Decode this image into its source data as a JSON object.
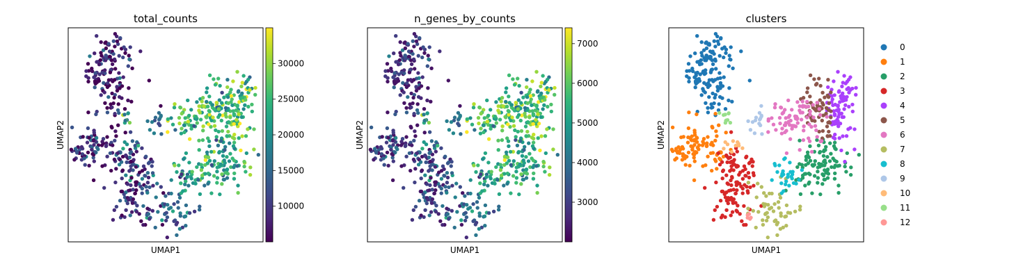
{
  "chart_data": [
    {
      "type": "scatter",
      "title": "total_counts",
      "xlabel": "UMAP1",
      "ylabel": "UMAP2",
      "colorbar": {
        "colormap": "viridis",
        "range": [
          5000,
          35000
        ],
        "ticks": [
          10000,
          15000,
          20000,
          25000,
          30000
        ],
        "tick_labels": [
          "10000",
          "15000",
          "20000",
          "25000",
          "30000"
        ]
      }
    },
    {
      "type": "scatter",
      "title": "n_genes_by_counts",
      "xlabel": "UMAP1",
      "ylabel": "UMAP2",
      "colorbar": {
        "colormap": "viridis",
        "range": [
          2000,
          7400
        ],
        "ticks": [
          3000,
          4000,
          5000,
          6000,
          7000
        ],
        "tick_labels": [
          "3000",
          "4000",
          "5000",
          "6000",
          "7000"
        ]
      }
    },
    {
      "type": "scatter",
      "title": "clusters",
      "xlabel": "UMAP1",
      "ylabel": "UMAP2",
      "legend_position": "right",
      "legend": [
        {
          "label": "0",
          "color": "#1f77b4"
        },
        {
          "label": "1",
          "color": "#ff7f0e"
        },
        {
          "label": "2",
          "color": "#279e68"
        },
        {
          "label": "3",
          "color": "#d62728"
        },
        {
          "label": "4",
          "color": "#aa40fc"
        },
        {
          "label": "5",
          "color": "#8c564b"
        },
        {
          "label": "6",
          "color": "#e377c2"
        },
        {
          "label": "7",
          "color": "#b5bd61"
        },
        {
          "label": "8",
          "color": "#17becf"
        },
        {
          "label": "9",
          "color": "#aec7e8"
        },
        {
          "label": "10",
          "color": "#ffbb78"
        },
        {
          "label": "11",
          "color": "#98df8a"
        },
        {
          "label": "12",
          "color": "#ff9896"
        }
      ]
    }
  ]
}
